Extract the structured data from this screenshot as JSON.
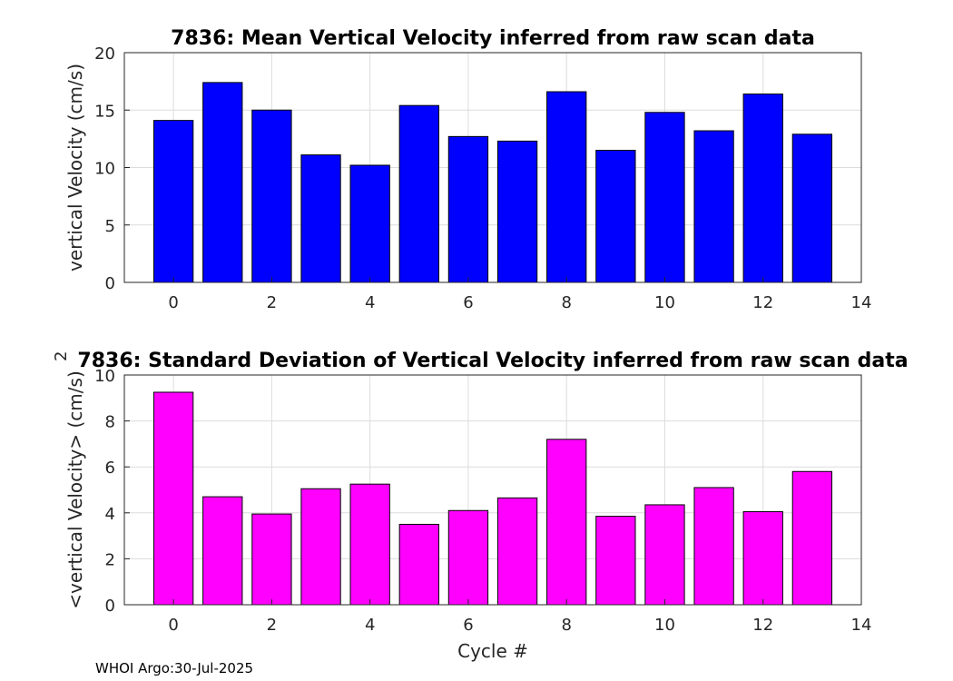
{
  "chart_data": [
    {
      "type": "bar",
      "title": "7836: Mean Vertical Velocity inferred from raw scan data",
      "xlabel": "",
      "ylabel": "vertical Velocity (cm/s)",
      "categories": [
        0,
        1,
        2,
        3,
        4,
        5,
        6,
        7,
        8,
        9,
        10,
        11,
        12,
        13
      ],
      "values": [
        14.1,
        17.4,
        15.0,
        11.1,
        10.2,
        15.4,
        12.7,
        12.3,
        16.6,
        11.5,
        14.8,
        13.2,
        16.4,
        12.9
      ],
      "xlim": [
        -1,
        14
      ],
      "ylim": [
        0,
        20
      ],
      "xticks": [
        0,
        2,
        4,
        6,
        8,
        10,
        12,
        14
      ],
      "yticks": [
        0,
        5,
        10,
        15,
        20
      ],
      "color": "#0000ff",
      "grid": true
    },
    {
      "type": "bar",
      "title": "7836: Standard Deviation of Vertical Velocity inferred from raw scan data",
      "xlabel": "Cycle #",
      "ylabel": "<vertical Velocity> (cm/s)",
      "ylabel_superscript": "2",
      "categories": [
        0,
        1,
        2,
        3,
        4,
        5,
        6,
        7,
        8,
        9,
        10,
        11,
        12,
        13
      ],
      "values": [
        9.25,
        4.7,
        3.95,
        5.05,
        5.25,
        3.5,
        4.1,
        4.65,
        7.2,
        3.85,
        4.35,
        5.1,
        4.05,
        5.8
      ],
      "xlim": [
        -1,
        14
      ],
      "ylim": [
        0,
        10
      ],
      "xticks": [
        0,
        2,
        4,
        6,
        8,
        10,
        12,
        14
      ],
      "yticks": [
        0,
        2,
        4,
        6,
        8,
        10
      ],
      "color": "#ff00ff",
      "grid": true
    }
  ],
  "footer": "WHOI Argo:30-Jul-2025"
}
